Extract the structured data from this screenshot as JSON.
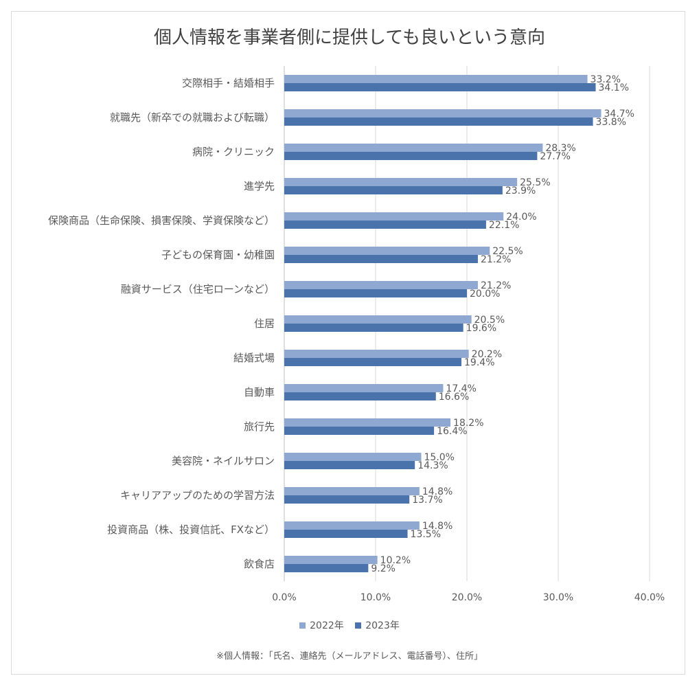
{
  "chart_data": {
    "type": "bar",
    "orientation": "horizontal",
    "title": "個人情報を事業者側に提供しても良いという意向",
    "categories": [
      "交際相手・結婚相手",
      "就職先（新卒での就職および転職）",
      "病院・クリニック",
      "進学先",
      "保険商品（生命保険、損害保険、学資保険など）",
      "子どもの保育園・幼稚園",
      "融資サービス（住宅ローンなど）",
      "住居",
      "結婚式場",
      "自動車",
      "旅行先",
      "美容院・ネイルサロン",
      "キャリアアップのための学習方法",
      "投資商品（株、投資信託、FXなど）",
      "飲食店"
    ],
    "series": [
      {
        "name": "2022年",
        "color": "#8fa8d1",
        "values": [
          33.2,
          34.7,
          28.3,
          25.5,
          24.0,
          22.5,
          21.2,
          20.5,
          20.2,
          17.4,
          18.2,
          15.0,
          14.8,
          14.8,
          10.2
        ]
      },
      {
        "name": "2023年",
        "color": "#4a73ab",
        "values": [
          34.1,
          33.8,
          27.7,
          23.9,
          22.1,
          21.2,
          20.0,
          19.6,
          19.4,
          16.6,
          16.4,
          14.3,
          13.7,
          13.5,
          9.2
        ]
      }
    ],
    "xlim": [
      0,
      40
    ],
    "xticks": [
      0,
      10,
      20,
      30,
      40
    ],
    "tick_format": "percent_1dp",
    "grid": true,
    "legend_position": "bottom",
    "footnote": "※個人情報：「氏名、連絡先（メールアドレス、電話番号）、住所」"
  }
}
